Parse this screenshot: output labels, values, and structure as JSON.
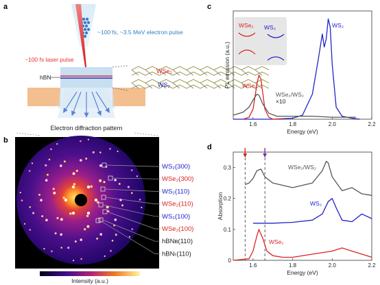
{
  "panel_labels": {
    "a": "a",
    "b": "b",
    "c": "c",
    "d": "d"
  },
  "schematic": {
    "electron_pulse": "~100 fs, ~3.5 MeV electron pulse",
    "laser_pulse": "~100 fs laser pulse",
    "hbn": "hBN",
    "wse2": "WSe₂",
    "ws2": "WS₂",
    "diffraction_caption": "Electron diffraction pattern"
  },
  "diffraction": {
    "labels": [
      {
        "text": "WS₂(300)",
        "color": "#2222cc"
      },
      {
        "text": "WSe₂(300)",
        "color": "#dd2222"
      },
      {
        "text": "WS₂(110)",
        "color": "#2222cc"
      },
      {
        "text": "WSe₂(110)",
        "color": "#dd2222"
      },
      {
        "text": "WS₂(100)",
        "color": "#2222cc"
      },
      {
        "text": "WSe₂(100)",
        "color": "#dd2222"
      },
      {
        "text": "hBNʙ(110)",
        "color": "#222222"
      },
      {
        "text": "hBNₜ(110)",
        "color": "#222222"
      }
    ],
    "colorbar_label": "Intensity (a.u.)"
  },
  "colors": {
    "ws2": "#2222cc",
    "wse2": "#dd2222",
    "hetero": "#555555",
    "electron": "#2f7fc0",
    "laser": "#e83030"
  },
  "chart_data": [
    {
      "panel": "c",
      "type": "line",
      "xlabel": "Energy (eV)",
      "ylabel": "PL emission (a.u.)",
      "xlim": [
        1.5,
        2.2
      ],
      "xticks": [
        1.6,
        1.8,
        2.0,
        2.2
      ],
      "series": [
        {
          "name": "WS₂",
          "color": "#2222cc",
          "x": [
            1.5,
            1.7,
            1.8,
            1.85,
            1.9,
            1.93,
            1.95,
            1.96,
            1.97,
            1.98,
            1.99,
            2.0,
            2.02,
            2.05,
            2.1,
            2.14
          ],
          "y": [
            0.0,
            0.0,
            0.01,
            0.04,
            0.25,
            0.6,
            0.85,
            0.72,
            0.8,
            1.0,
            0.92,
            0.55,
            0.12,
            0.03,
            0.01,
            0.0
          ]
        },
        {
          "name": "WSe₂",
          "color": "#dd2222",
          "x": [
            1.55,
            1.58,
            1.6,
            1.62,
            1.63,
            1.64,
            1.65,
            1.66,
            1.68,
            1.7,
            1.75
          ],
          "y": [
            0.0,
            0.02,
            0.1,
            0.35,
            0.44,
            0.4,
            0.25,
            0.1,
            0.02,
            0.0,
            0.0
          ]
        },
        {
          "name": "WSe₂/WS₂",
          "color": "#555555",
          "annotation": "×10",
          "x": [
            1.5,
            1.55,
            1.58,
            1.6,
            1.62,
            1.63,
            1.65,
            1.68,
            1.72,
            1.8,
            1.9,
            2.0,
            2.05,
            2.12
          ],
          "y": [
            0.04,
            0.07,
            0.12,
            0.19,
            0.25,
            0.24,
            0.15,
            0.06,
            0.03,
            0.03,
            0.03,
            0.02,
            0.02,
            0.02
          ]
        }
      ],
      "inset": {
        "wse2": "WSe₂",
        "ws2": "WS₂"
      }
    },
    {
      "panel": "d",
      "type": "line",
      "xlabel": "Energy (eV)",
      "ylabel": "Absorption",
      "xlim": [
        1.5,
        2.2
      ],
      "ylim": [
        0,
        0.35
      ],
      "xticks": [
        1.6,
        1.8,
        2.0,
        2.2
      ],
      "yticks": [
        0,
        0.1,
        0.2,
        0.3
      ],
      "markers": [
        {
          "x": 1.56,
          "color": "#dd2222"
        },
        {
          "x": 1.66,
          "color": "#7a2ea0"
        }
      ],
      "series": [
        {
          "name": "WSe₂/WS₂",
          "color": "#555555",
          "x": [
            1.56,
            1.58,
            1.6,
            1.62,
            1.64,
            1.66,
            1.7,
            1.8,
            1.9,
            1.95,
            1.97,
            1.98,
            2.0,
            2.05,
            2.1,
            2.15,
            2.2
          ],
          "y": [
            0.245,
            0.25,
            0.265,
            0.29,
            0.295,
            0.27,
            0.25,
            0.235,
            0.25,
            0.29,
            0.32,
            0.315,
            0.27,
            0.225,
            0.235,
            0.215,
            0.21
          ]
        },
        {
          "name": "WS₂",
          "color": "#2222cc",
          "x": [
            1.6,
            1.7,
            1.8,
            1.9,
            1.95,
            1.98,
            2.0,
            2.02,
            2.05,
            2.1,
            2.15,
            2.2
          ],
          "y": [
            0.12,
            0.12,
            0.123,
            0.13,
            0.15,
            0.19,
            0.2,
            0.17,
            0.13,
            0.125,
            0.15,
            0.135
          ]
        },
        {
          "name": "WSe₂",
          "color": "#dd2222",
          "x": [
            1.5,
            1.58,
            1.6,
            1.62,
            1.63,
            1.65,
            1.67,
            1.7,
            1.75,
            1.8,
            1.9,
            2.0,
            2.05,
            2.1,
            2.15,
            2.2
          ],
          "y": [
            0.0,
            0.005,
            0.03,
            0.08,
            0.1,
            0.07,
            0.03,
            0.015,
            0.01,
            0.01,
            0.02,
            0.03,
            0.04,
            0.03,
            0.02,
            0.01
          ]
        }
      ]
    }
  ]
}
